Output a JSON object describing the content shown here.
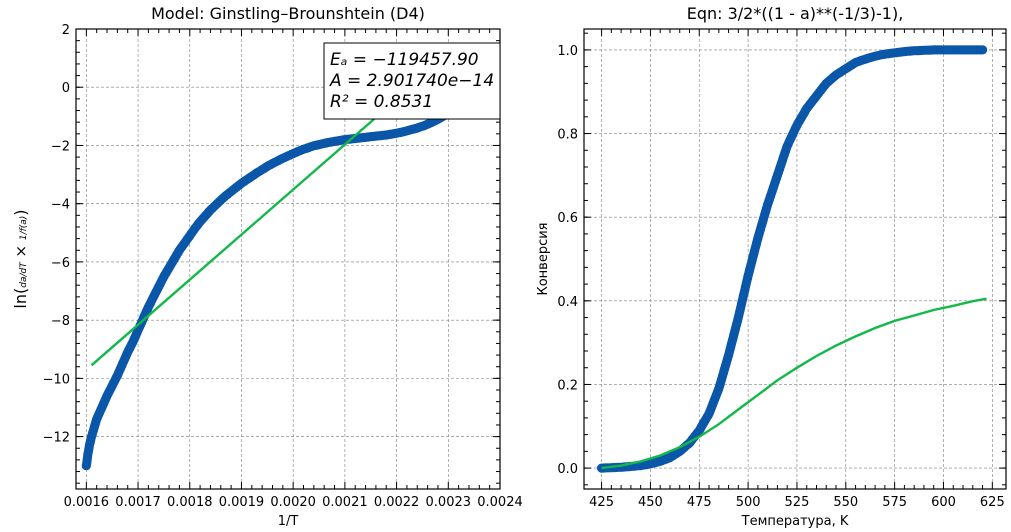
{
  "chart_data": [
    {
      "type": "scatter",
      "title": "Model: Ginstling–Brounshtein (D4)",
      "xlabel": "1/T",
      "ylabel": "ln(da/dT × 1/f(a))",
      "xlim": [
        0.00158,
        0.0024
      ],
      "ylim": [
        -13.8,
        2
      ],
      "xticks": [
        "0.0016",
        "0.0017",
        "0.0018",
        "0.0019",
        "0.0020",
        "0.0021",
        "0.0022",
        "0.0023",
        "0.0024"
      ],
      "yticks": [
        "2",
        "0",
        "−2",
        "−4",
        "−6",
        "−8",
        "−10",
        "−12"
      ],
      "grid": true,
      "annotation": {
        "line1": "Eₐ = −119457.90",
        "line2": "A = 2.901740e−14",
        "line3": "R² = 0.8531"
      },
      "colors": {
        "points": "#0a56a8",
        "fit": "#12b848"
      },
      "series": [
        {
          "kind": "scatter",
          "x": [
            0.0016,
            0.001603,
            0.001606,
            0.00161,
            0.001615,
            0.00162,
            0.00163,
            0.00164,
            0.00165,
            0.00166,
            0.00167,
            0.00168,
            0.00169,
            0.0017,
            0.00171,
            0.00172,
            0.00173,
            0.00174,
            0.00175,
            0.00176,
            0.00177,
            0.00178,
            0.00179,
            0.0018,
            0.00181,
            0.00182,
            0.00183,
            0.00184,
            0.00185,
            0.00186,
            0.00187,
            0.00188,
            0.00189,
            0.0019,
            0.00191,
            0.00192,
            0.00193,
            0.00194,
            0.00195,
            0.00196,
            0.00197,
            0.00198,
            0.00199,
            0.002,
            0.00201,
            0.00202,
            0.00203,
            0.00204,
            0.00205,
            0.00206,
            0.00207,
            0.00208,
            0.00209,
            0.0021,
            0.00211,
            0.00212,
            0.00213,
            0.00214,
            0.00215,
            0.00216,
            0.00217,
            0.00218,
            0.00219,
            0.0022,
            0.00221,
            0.00222,
            0.00223,
            0.00224,
            0.00225,
            0.00226,
            0.00227,
            0.00228,
            0.00229,
            0.0023,
            0.00231,
            0.00232,
            0.00233
          ],
          "y": [
            -13.0,
            -12.6,
            -12.3,
            -12.0,
            -11.7,
            -11.4,
            -11.0,
            -10.6,
            -10.25,
            -9.9,
            -9.5,
            -9.1,
            -8.75,
            -8.35,
            -7.95,
            -7.55,
            -7.2,
            -6.85,
            -6.5,
            -6.2,
            -5.9,
            -5.6,
            -5.35,
            -5.1,
            -4.85,
            -4.62,
            -4.42,
            -4.22,
            -4.05,
            -3.88,
            -3.72,
            -3.58,
            -3.44,
            -3.3,
            -3.18,
            -3.06,
            -2.94,
            -2.83,
            -2.72,
            -2.62,
            -2.53,
            -2.44,
            -2.36,
            -2.28,
            -2.2,
            -2.13,
            -2.07,
            -2.01,
            -1.97,
            -1.93,
            -1.89,
            -1.86,
            -1.83,
            -1.8,
            -1.78,
            -1.76,
            -1.74,
            -1.72,
            -1.7,
            -1.68,
            -1.66,
            -1.64,
            -1.61,
            -1.58,
            -1.54,
            -1.5,
            -1.45,
            -1.4,
            -1.34,
            -1.27,
            -1.19,
            -1.1,
            -1.0,
            -0.9,
            -0.78,
            -0.65,
            -0.5
          ]
        },
        {
          "kind": "line",
          "x": [
            0.00161,
            0.00224
          ],
          "y": [
            -9.55,
            0.2
          ]
        }
      ]
    },
    {
      "type": "scatter",
      "title": "Eqn: 3/2*((1 - a)**(-1/3)-1),",
      "xlabel": "Температура, K",
      "ylabel": "Конверсия",
      "xlim": [
        416,
        632
      ],
      "ylim": [
        -0.05,
        1.05
      ],
      "xticks": [
        "425",
        "450",
        "475",
        "500",
        "525",
        "550",
        "575",
        "600",
        "625"
      ],
      "yticks": [
        "0.0",
        "0.2",
        "0.4",
        "0.6",
        "0.8",
        "1.0"
      ],
      "grid": true,
      "colors": {
        "points": "#0a56a8",
        "fit": "#12b848"
      },
      "series": [
        {
          "kind": "scatter",
          "x": [
            425,
            430,
            435,
            440,
            445,
            450,
            455,
            460,
            465,
            470,
            475,
            480,
            485,
            490,
            495,
            500,
            505,
            510,
            515,
            520,
            525,
            530,
            535,
            540,
            545,
            550,
            555,
            560,
            565,
            570,
            575,
            580,
            585,
            590,
            595,
            600,
            605,
            610,
            615,
            620
          ],
          "y": [
            0.0,
            0.001,
            0.002,
            0.004,
            0.006,
            0.01,
            0.016,
            0.025,
            0.04,
            0.06,
            0.09,
            0.13,
            0.19,
            0.27,
            0.36,
            0.46,
            0.55,
            0.63,
            0.7,
            0.77,
            0.82,
            0.86,
            0.89,
            0.92,
            0.94,
            0.955,
            0.97,
            0.978,
            0.985,
            0.99,
            0.993,
            0.996,
            0.998,
            0.999,
            1.0,
            1.0,
            1.0,
            1.0,
            1.0,
            1.0
          ]
        },
        {
          "kind": "line",
          "x": [
            425,
            435,
            445,
            455,
            465,
            475,
            485,
            495,
            505,
            515,
            525,
            535,
            545,
            555,
            565,
            575,
            585,
            595,
            605,
            615,
            622
          ],
          "y": [
            0.0,
            0.006,
            0.016,
            0.03,
            0.05,
            0.075,
            0.105,
            0.14,
            0.175,
            0.21,
            0.24,
            0.268,
            0.293,
            0.315,
            0.335,
            0.352,
            0.365,
            0.378,
            0.388,
            0.399,
            0.405
          ]
        }
      ]
    }
  ]
}
